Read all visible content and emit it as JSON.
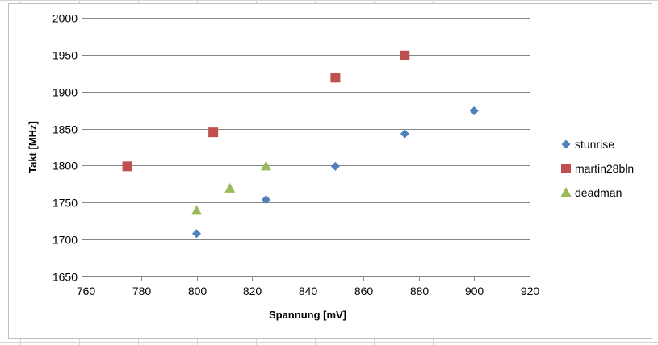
{
  "chart_data": {
    "type": "scatter",
    "title": "",
    "xlabel": "Spannung [mV]",
    "ylabel": "Takt [MHz]",
    "xlim": [
      760,
      920
    ],
    "ylim": [
      1650,
      2000
    ],
    "xticks": [
      760,
      780,
      800,
      820,
      840,
      860,
      880,
      900,
      920
    ],
    "yticks": [
      1650,
      1700,
      1750,
      1800,
      1850,
      1900,
      1950,
      2000
    ],
    "grid": "horizontal",
    "legend_position": "right",
    "series": [
      {
        "name": "stunrise",
        "marker": "diamond",
        "color": "#4f81bd",
        "points": [
          [
            800,
            1708
          ],
          [
            825,
            1754
          ],
          [
            850,
            1799
          ],
          [
            875,
            1843
          ],
          [
            900,
            1874
          ]
        ]
      },
      {
        "name": "martin28bln",
        "marker": "square",
        "color": "#c0504d",
        "points": [
          [
            775,
            1799
          ],
          [
            806,
            1845
          ],
          [
            850,
            1919
          ],
          [
            875,
            1949
          ]
        ]
      },
      {
        "name": "deadman",
        "marker": "triangle",
        "color": "#9bbb59",
        "points": [
          [
            800,
            1739
          ],
          [
            812,
            1769
          ],
          [
            825,
            1799
          ]
        ]
      }
    ]
  }
}
